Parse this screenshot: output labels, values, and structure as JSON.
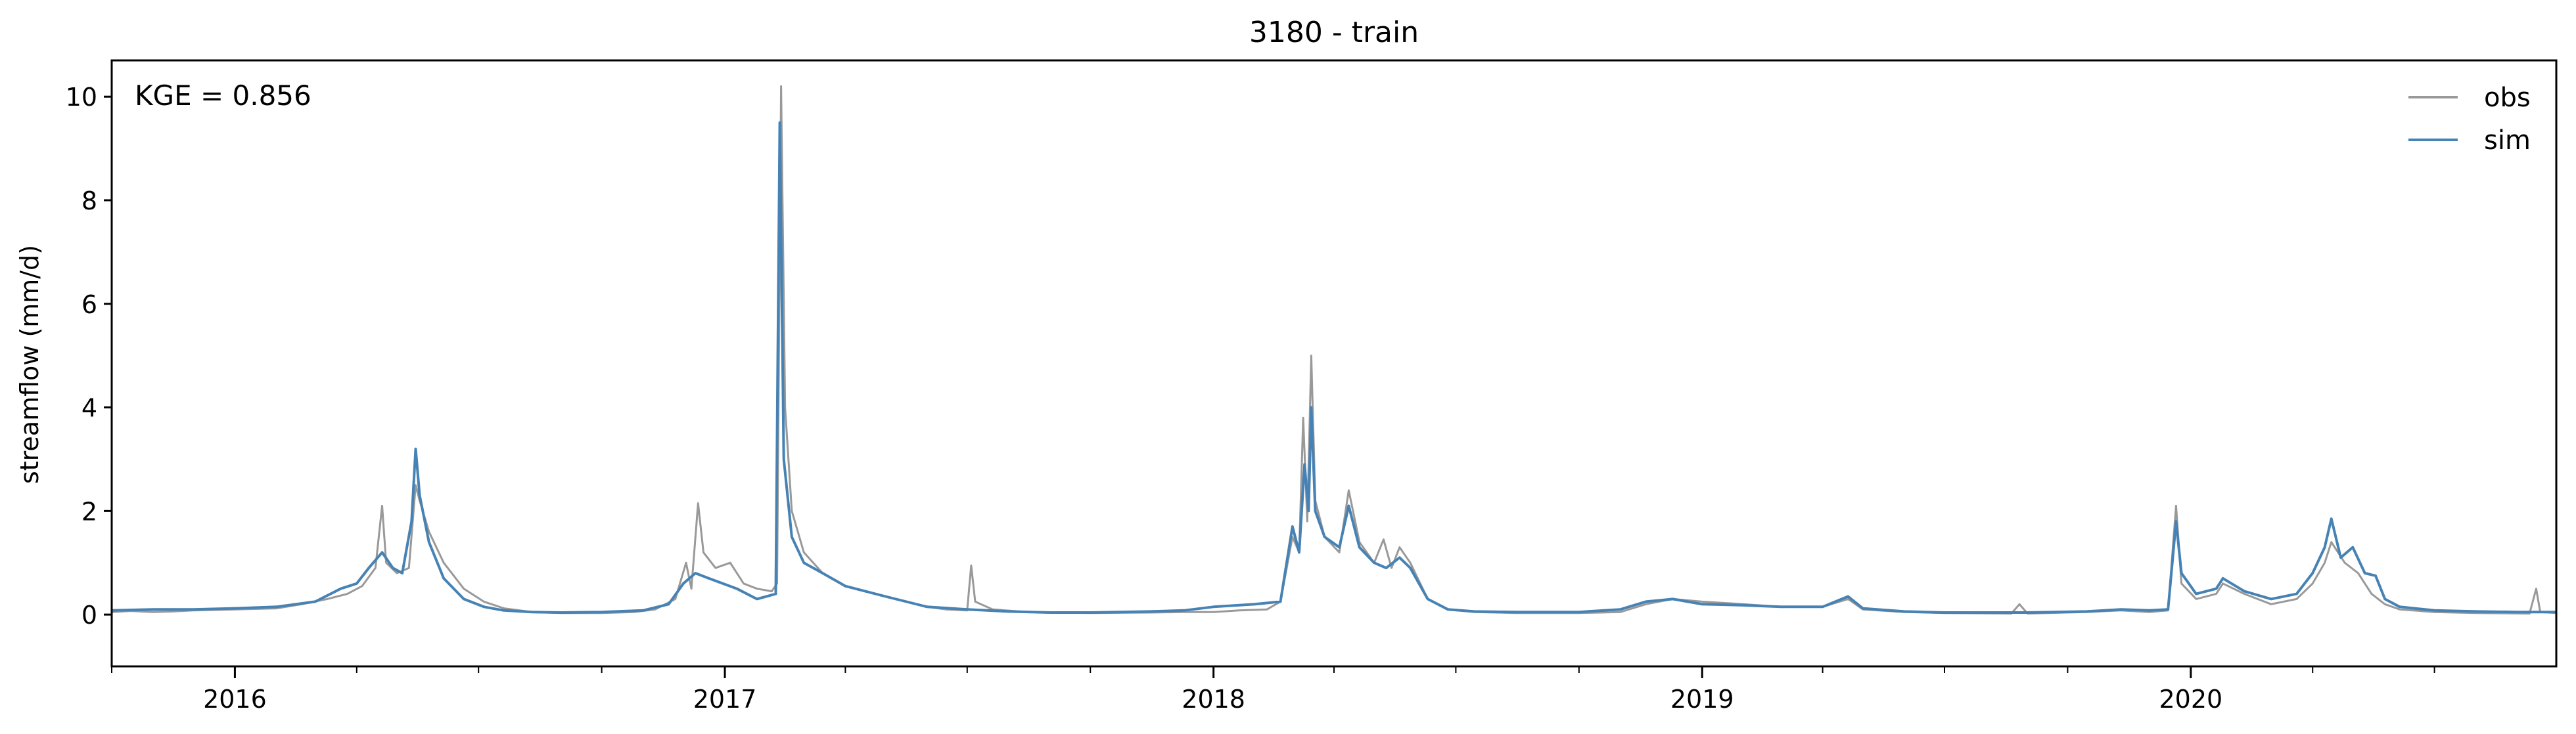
{
  "chart_data": {
    "type": "line",
    "title": "3180 - train",
    "xlabel": "",
    "ylabel": "streamflow (mm/d)",
    "annotation": "KGE = 0.856",
    "xlim": [
      "2015-10-01",
      "2020-09-30"
    ],
    "ylim": [
      -1,
      10.7
    ],
    "yticks": [
      0,
      2,
      4,
      6,
      8,
      10
    ],
    "xticks": [
      {
        "date": "2016-01-01",
        "label": "2016"
      },
      {
        "date": "2017-01-01",
        "label": "2017"
      },
      {
        "date": "2018-01-01",
        "label": "2018"
      },
      {
        "date": "2019-01-01",
        "label": "2019"
      },
      {
        "date": "2020-01-01",
        "label": "2020"
      }
    ],
    "grid": false,
    "legend": {
      "position": "top-right"
    },
    "series": [
      {
        "name": "obs",
        "color": "#999999",
        "points": [
          [
            "2015-10-01",
            0.05
          ],
          [
            "2015-10-15",
            0.07
          ],
          [
            "2015-11-01",
            0.05
          ],
          [
            "2015-11-15",
            0.06
          ],
          [
            "2015-12-01",
            0.08
          ],
          [
            "2016-01-01",
            0.1
          ],
          [
            "2016-02-01",
            0.12
          ],
          [
            "2016-02-20",
            0.2
          ],
          [
            "2016-03-10",
            0.3
          ],
          [
            "2016-03-25",
            0.4
          ],
          [
            "2016-04-05",
            0.55
          ],
          [
            "2016-04-15",
            0.9
          ],
          [
            "2016-04-20",
            2.1
          ],
          [
            "2016-04-23",
            1.0
          ],
          [
            "2016-05-01",
            0.8
          ],
          [
            "2016-05-10",
            0.9
          ],
          [
            "2016-05-15",
            2.5
          ],
          [
            "2016-05-18",
            2.2
          ],
          [
            "2016-05-25",
            1.6
          ],
          [
            "2016-06-05",
            1.0
          ],
          [
            "2016-06-20",
            0.5
          ],
          [
            "2016-07-05",
            0.25
          ],
          [
            "2016-07-20",
            0.12
          ],
          [
            "2016-08-10",
            0.05
          ],
          [
            "2016-09-01",
            0.03
          ],
          [
            "2016-10-01",
            0.03
          ],
          [
            "2016-10-25",
            0.05
          ],
          [
            "2016-11-10",
            0.1
          ],
          [
            "2016-11-25",
            0.3
          ],
          [
            "2016-12-03",
            1.0
          ],
          [
            "2016-12-07",
            0.5
          ],
          [
            "2016-12-12",
            2.15
          ],
          [
            "2016-12-16",
            1.2
          ],
          [
            "2016-12-25",
            0.9
          ],
          [
            "2017-01-05",
            1.0
          ],
          [
            "2017-01-15",
            0.6
          ],
          [
            "2017-01-25",
            0.5
          ],
          [
            "2017-02-05",
            0.45
          ],
          [
            "2017-02-09",
            0.6
          ],
          [
            "2017-02-12",
            10.2
          ],
          [
            "2017-02-15",
            4.0
          ],
          [
            "2017-02-20",
            2.0
          ],
          [
            "2017-03-01",
            1.2
          ],
          [
            "2017-03-15",
            0.8
          ],
          [
            "2017-04-01",
            0.55
          ],
          [
            "2017-05-01",
            0.35
          ],
          [
            "2017-06-01",
            0.15
          ],
          [
            "2017-06-15",
            0.1
          ],
          [
            "2017-07-01",
            0.08
          ],
          [
            "2017-07-04",
            0.95
          ],
          [
            "2017-07-07",
            0.25
          ],
          [
            "2017-07-20",
            0.1
          ],
          [
            "2017-08-15",
            0.05
          ],
          [
            "2017-10-01",
            0.03
          ],
          [
            "2017-11-15",
            0.04
          ],
          [
            "2017-12-10",
            0.05
          ],
          [
            "2018-01-01",
            0.05
          ],
          [
            "2018-01-20",
            0.08
          ],
          [
            "2018-02-10",
            0.1
          ],
          [
            "2018-02-20",
            0.25
          ],
          [
            "2018-03-01",
            1.5
          ],
          [
            "2018-03-06",
            1.2
          ],
          [
            "2018-03-09",
            3.8
          ],
          [
            "2018-03-12",
            1.8
          ],
          [
            "2018-03-15",
            5.0
          ],
          [
            "2018-03-18",
            2.2
          ],
          [
            "2018-03-25",
            1.5
          ],
          [
            "2018-04-05",
            1.2
          ],
          [
            "2018-04-12",
            2.4
          ],
          [
            "2018-04-20",
            1.4
          ],
          [
            "2018-05-01",
            1.0
          ],
          [
            "2018-05-08",
            1.45
          ],
          [
            "2018-05-14",
            0.9
          ],
          [
            "2018-05-20",
            1.3
          ],
          [
            "2018-05-28",
            1.0
          ],
          [
            "2018-06-10",
            0.3
          ],
          [
            "2018-06-25",
            0.1
          ],
          [
            "2018-07-15",
            0.05
          ],
          [
            "2018-08-15",
            0.03
          ],
          [
            "2018-10-01",
            0.03
          ],
          [
            "2018-11-01",
            0.05
          ],
          [
            "2018-11-20",
            0.2
          ],
          [
            "2018-12-10",
            0.3
          ],
          [
            "2019-01-01",
            0.25
          ],
          [
            "2019-02-01",
            0.2
          ],
          [
            "2019-03-01",
            0.15
          ],
          [
            "2019-04-01",
            0.15
          ],
          [
            "2019-04-20",
            0.3
          ],
          [
            "2019-05-01",
            0.1
          ],
          [
            "2019-06-01",
            0.05
          ],
          [
            "2019-07-01",
            0.03
          ],
          [
            "2019-08-20",
            0.02
          ],
          [
            "2019-08-26",
            0.2
          ],
          [
            "2019-09-01",
            0.02
          ],
          [
            "2019-10-15",
            0.05
          ],
          [
            "2019-11-10",
            0.08
          ],
          [
            "2019-12-01",
            0.05
          ],
          [
            "2019-12-15",
            0.08
          ],
          [
            "2019-12-21",
            2.1
          ],
          [
            "2019-12-25",
            0.6
          ],
          [
            "2020-01-05",
            0.3
          ],
          [
            "2020-01-20",
            0.4
          ],
          [
            "2020-01-25",
            0.6
          ],
          [
            "2020-02-10",
            0.4
          ],
          [
            "2020-03-01",
            0.2
          ],
          [
            "2020-03-20",
            0.3
          ],
          [
            "2020-04-01",
            0.6
          ],
          [
            "2020-04-10",
            1.0
          ],
          [
            "2020-04-15",
            1.4
          ],
          [
            "2020-04-25",
            1.0
          ],
          [
            "2020-05-05",
            0.8
          ],
          [
            "2020-05-15",
            0.4
          ],
          [
            "2020-05-25",
            0.2
          ],
          [
            "2020-06-05",
            0.1
          ],
          [
            "2020-07-01",
            0.05
          ],
          [
            "2020-08-01",
            0.03
          ],
          [
            "2020-09-10",
            0.02
          ],
          [
            "2020-09-15",
            0.5
          ],
          [
            "2020-09-18",
            0.05
          ],
          [
            "2020-09-30",
            0.03
          ]
        ]
      },
      {
        "name": "sim",
        "color": "#4682b4",
        "points": [
          [
            "2015-10-01",
            0.08
          ],
          [
            "2015-11-01",
            0.1
          ],
          [
            "2015-12-01",
            0.1
          ],
          [
            "2016-01-01",
            0.12
          ],
          [
            "2016-02-01",
            0.15
          ],
          [
            "2016-03-01",
            0.25
          ],
          [
            "2016-03-20",
            0.5
          ],
          [
            "2016-04-01",
            0.6
          ],
          [
            "2016-04-10",
            0.9
          ],
          [
            "2016-04-20",
            1.2
          ],
          [
            "2016-04-28",
            0.9
          ],
          [
            "2016-05-05",
            0.8
          ],
          [
            "2016-05-12",
            1.8
          ],
          [
            "2016-05-15",
            3.2
          ],
          [
            "2016-05-18",
            2.3
          ],
          [
            "2016-05-25",
            1.4
          ],
          [
            "2016-06-05",
            0.7
          ],
          [
            "2016-06-20",
            0.3
          ],
          [
            "2016-07-05",
            0.15
          ],
          [
            "2016-07-20",
            0.08
          ],
          [
            "2016-08-10",
            0.05
          ],
          [
            "2016-09-01",
            0.04
          ],
          [
            "2016-10-01",
            0.05
          ],
          [
            "2016-11-01",
            0.08
          ],
          [
            "2016-11-20",
            0.2
          ],
          [
            "2016-12-01",
            0.6
          ],
          [
            "2016-12-10",
            0.8
          ],
          [
            "2016-12-20",
            0.7
          ],
          [
            "2017-01-10",
            0.5
          ],
          [
            "2017-01-25",
            0.3
          ],
          [
            "2017-02-08",
            0.4
          ],
          [
            "2017-02-11",
            9.5
          ],
          [
            "2017-02-14",
            3.0
          ],
          [
            "2017-02-20",
            1.5
          ],
          [
            "2017-03-01",
            1.0
          ],
          [
            "2017-03-15",
            0.8
          ],
          [
            "2017-04-01",
            0.55
          ],
          [
            "2017-05-01",
            0.35
          ],
          [
            "2017-06-01",
            0.15
          ],
          [
            "2017-07-01",
            0.1
          ],
          [
            "2017-08-01",
            0.06
          ],
          [
            "2017-09-01",
            0.04
          ],
          [
            "2017-10-01",
            0.04
          ],
          [
            "2017-11-15",
            0.06
          ],
          [
            "2017-12-10",
            0.08
          ],
          [
            "2018-01-01",
            0.15
          ],
          [
            "2018-02-01",
            0.2
          ],
          [
            "2018-02-20",
            0.25
          ],
          [
            "2018-03-01",
            1.7
          ],
          [
            "2018-03-06",
            1.2
          ],
          [
            "2018-03-10",
            2.9
          ],
          [
            "2018-03-13",
            2.0
          ],
          [
            "2018-03-15",
            4.0
          ],
          [
            "2018-03-18",
            2.0
          ],
          [
            "2018-03-25",
            1.5
          ],
          [
            "2018-04-05",
            1.3
          ],
          [
            "2018-04-12",
            2.1
          ],
          [
            "2018-04-20",
            1.3
          ],
          [
            "2018-05-01",
            1.0
          ],
          [
            "2018-05-10",
            0.9
          ],
          [
            "2018-05-20",
            1.1
          ],
          [
            "2018-05-28",
            0.9
          ],
          [
            "2018-06-10",
            0.3
          ],
          [
            "2018-06-25",
            0.1
          ],
          [
            "2018-07-15",
            0.06
          ],
          [
            "2018-08-15",
            0.05
          ],
          [
            "2018-10-01",
            0.05
          ],
          [
            "2018-11-01",
            0.1
          ],
          [
            "2018-11-20",
            0.25
          ],
          [
            "2018-12-10",
            0.3
          ],
          [
            "2019-01-01",
            0.2
          ],
          [
            "2019-02-01",
            0.18
          ],
          [
            "2019-03-01",
            0.15
          ],
          [
            "2019-04-01",
            0.15
          ],
          [
            "2019-04-20",
            0.35
          ],
          [
            "2019-05-01",
            0.12
          ],
          [
            "2019-06-01",
            0.06
          ],
          [
            "2019-07-01",
            0.04
          ],
          [
            "2019-09-01",
            0.04
          ],
          [
            "2019-10-15",
            0.06
          ],
          [
            "2019-11-10",
            0.1
          ],
          [
            "2019-12-01",
            0.08
          ],
          [
            "2019-12-15",
            0.1
          ],
          [
            "2019-12-21",
            1.8
          ],
          [
            "2019-12-25",
            0.8
          ],
          [
            "2020-01-05",
            0.4
          ],
          [
            "2020-01-20",
            0.5
          ],
          [
            "2020-01-25",
            0.7
          ],
          [
            "2020-02-10",
            0.45
          ],
          [
            "2020-03-01",
            0.3
          ],
          [
            "2020-03-20",
            0.4
          ],
          [
            "2020-04-01",
            0.8
          ],
          [
            "2020-04-10",
            1.3
          ],
          [
            "2020-04-15",
            1.85
          ],
          [
            "2020-04-22",
            1.1
          ],
          [
            "2020-05-01",
            1.3
          ],
          [
            "2020-05-10",
            0.8
          ],
          [
            "2020-05-18",
            0.75
          ],
          [
            "2020-05-25",
            0.3
          ],
          [
            "2020-06-05",
            0.15
          ],
          [
            "2020-07-01",
            0.08
          ],
          [
            "2020-08-01",
            0.06
          ],
          [
            "2020-09-01",
            0.05
          ],
          [
            "2020-09-30",
            0.05
          ]
        ]
      }
    ]
  }
}
